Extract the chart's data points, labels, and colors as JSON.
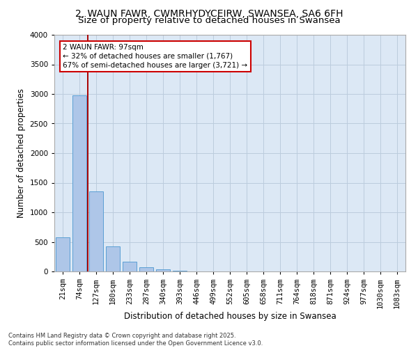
{
  "title_line1": "2, WAUN FAWR, CWMRHYDYCEIRW, SWANSEA, SA6 6FH",
  "title_line2": "Size of property relative to detached houses in Swansea",
  "xlabel": "Distribution of detached houses by size in Swansea",
  "ylabel": "Number of detached properties",
  "categories": [
    "21sqm",
    "74sqm",
    "127sqm",
    "180sqm",
    "233sqm",
    "287sqm",
    "340sqm",
    "393sqm",
    "446sqm",
    "499sqm",
    "552sqm",
    "605sqm",
    "658sqm",
    "711sqm",
    "764sqm",
    "818sqm",
    "871sqm",
    "924sqm",
    "977sqm",
    "1030sqm",
    "1083sqm"
  ],
  "bar_values": [
    580,
    2980,
    1350,
    420,
    160,
    75,
    40,
    10,
    5,
    2,
    1,
    0,
    0,
    0,
    0,
    0,
    0,
    0,
    0,
    0,
    0
  ],
  "bar_color": "#aec6e8",
  "bar_edge_color": "#5a9fd4",
  "grid_color": "#bbccdd",
  "background_color": "#dce8f5",
  "vline_color": "#aa0000",
  "annotation_text": "2 WAUN FAWR: 97sqm\n← 32% of detached houses are smaller (1,767)\n67% of semi-detached houses are larger (3,721) →",
  "annotation_box_color": "#cc0000",
  "ylim": [
    0,
    4000
  ],
  "yticks": [
    0,
    500,
    1000,
    1500,
    2000,
    2500,
    3000,
    3500,
    4000
  ],
  "footer_line1": "Contains HM Land Registry data © Crown copyright and database right 2025.",
  "footer_line2": "Contains public sector information licensed under the Open Government Licence v3.0.",
  "title_fontsize": 10,
  "subtitle_fontsize": 9.5,
  "axis_label_fontsize": 8.5,
  "tick_fontsize": 7.5,
  "annotation_fontsize": 7.5,
  "footer_fontsize": 6
}
